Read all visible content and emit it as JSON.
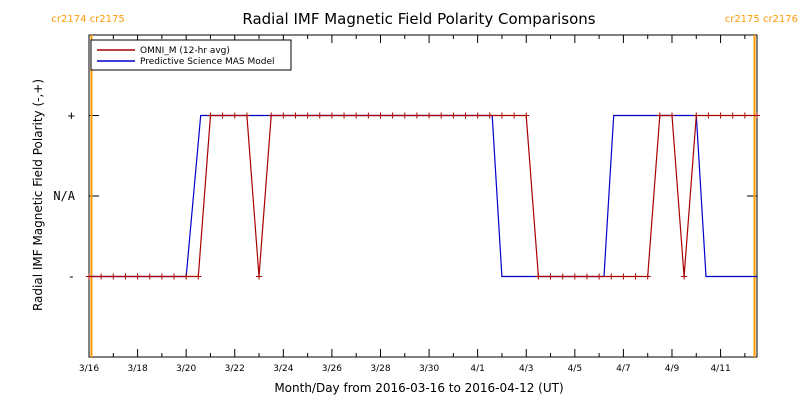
{
  "chart_data": {
    "type": "line",
    "title": "Radial IMF Magnetic Field Polarity Comparisons",
    "xlabel": "Month/Day from 2016-03-16 to 2016-04-12 (UT)",
    "ylabel": "Radial IMF Magnetic Field Polarity (-,+)",
    "xlim": [
      0,
      27.5
    ],
    "ylim": [
      -2,
      2
    ],
    "x_tick_values": [
      0,
      2,
      4,
      6,
      8,
      10,
      12,
      14,
      16,
      18,
      20,
      22,
      24,
      26
    ],
    "x_tick_labels": [
      "3/16",
      "3/18",
      "3/20",
      "3/22",
      "3/24",
      "3/26",
      "3/28",
      "3/30",
      "4/1",
      "4/3",
      "4/5",
      "4/7",
      "4/9",
      "4/11"
    ],
    "y_tick_values": [
      -1,
      0,
      1
    ],
    "y_tick_labels": [
      "-",
      "N/A",
      "+"
    ],
    "grid": false,
    "legend_position": "top-left",
    "cr_boundaries": [
      {
        "x": 0.1,
        "labels": [
          "cr2174",
          "cr2175"
        ],
        "label_side": "left"
      },
      {
        "x": 27.4,
        "labels": [
          "cr2175",
          "cr2176"
        ],
        "label_side": "right"
      }
    ],
    "series": [
      {
        "name": "OMNI_M (12-hr avg)",
        "color": "#aa0000",
        "markers": true,
        "x": [
          0,
          0.5,
          1,
          1.5,
          2,
          2.5,
          3,
          3.5,
          4,
          4.5,
          5,
          5.5,
          6,
          6.5,
          7,
          7.5,
          8,
          8.5,
          9,
          9.5,
          10,
          10.5,
          11,
          11.5,
          12,
          12.5,
          13,
          13.5,
          14,
          14.5,
          15,
          15.5,
          16,
          16.5,
          17,
          17.5,
          18,
          18.5,
          19,
          19.5,
          20,
          20.5,
          21,
          21.5,
          22,
          22.5,
          23,
          23.5,
          24,
          24.5,
          25,
          25.5,
          26,
          26.5,
          27,
          27.5
        ],
        "y": [
          -1,
          -1,
          -1,
          -1,
          -1,
          -1,
          -1,
          -1,
          -1,
          -1,
          1,
          1,
          1,
          1,
          -1,
          1,
          1,
          1,
          1,
          1,
          1,
          1,
          1,
          1,
          1,
          1,
          1,
          1,
          1,
          1,
          1,
          1,
          1,
          1,
          1,
          1,
          1,
          -1,
          -1,
          -1,
          -1,
          -1,
          -1,
          -1,
          -1,
          -1,
          -1,
          1,
          1,
          -1,
          1,
          1,
          1,
          1,
          1,
          1
        ]
      },
      {
        "name": "Predictive Science MAS Model",
        "color": "#0000cc",
        "markers": false,
        "x": [
          0,
          4.0,
          4.6,
          16.6,
          17.0,
          21.2,
          21.6,
          25.0,
          25.4,
          27.5
        ],
        "y": [
          -1,
          -1,
          1,
          1,
          -1,
          -1,
          1,
          1,
          -1,
          -1
        ]
      }
    ]
  }
}
